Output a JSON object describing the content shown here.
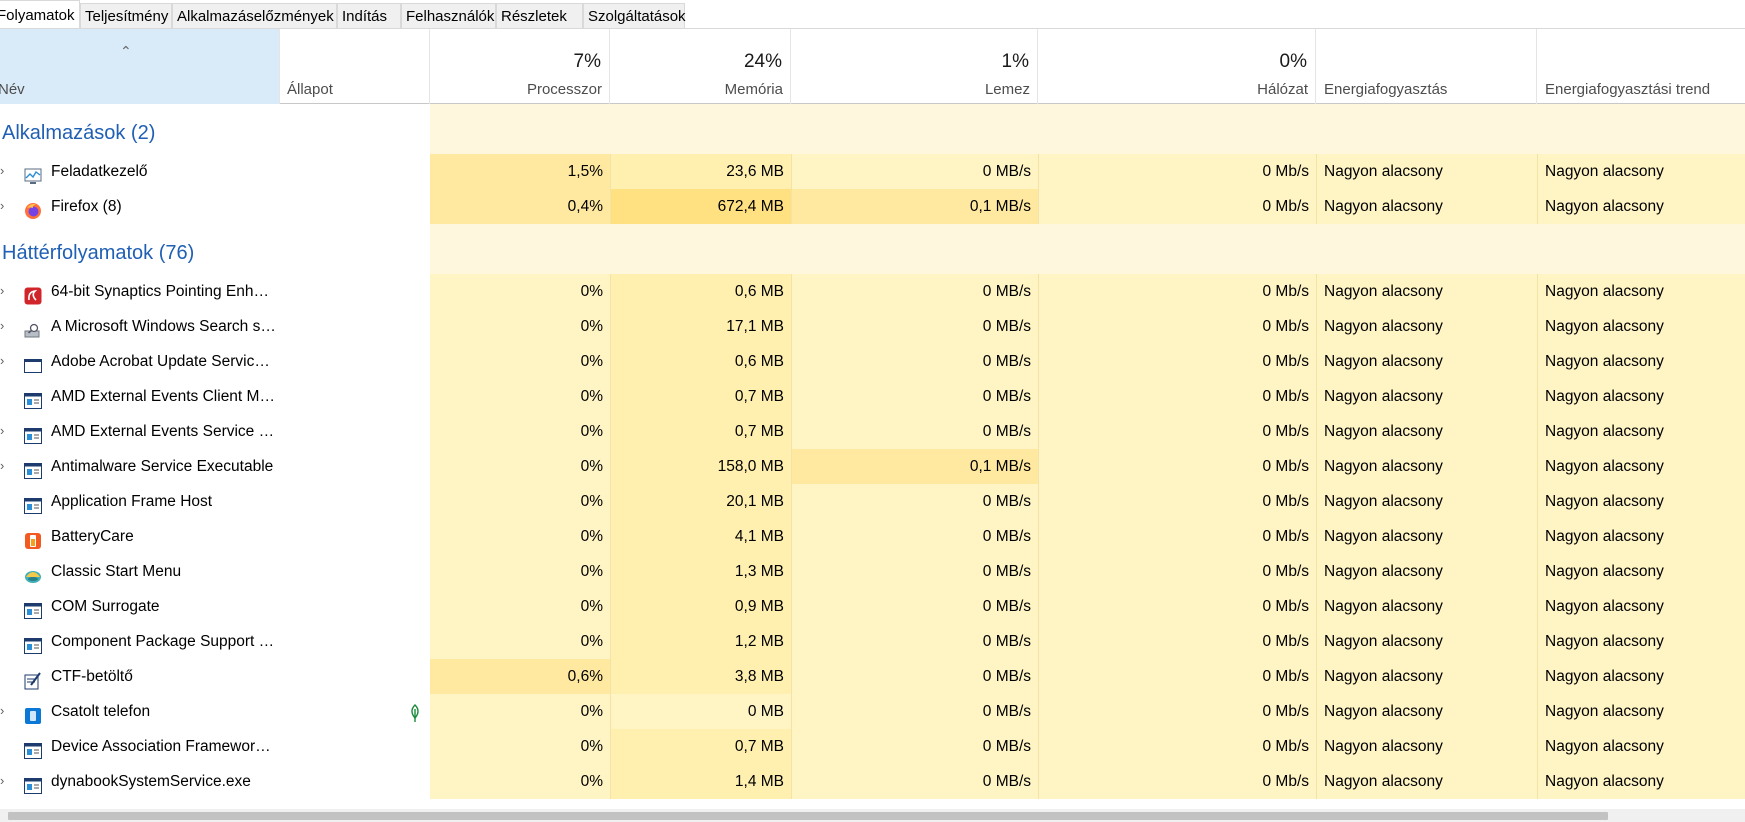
{
  "tabs": [
    {
      "label": "Folyamatok",
      "active": true
    },
    {
      "label": "Teljesítmény",
      "active": false
    },
    {
      "label": "Alkalmazáselőzmények",
      "active": false
    },
    {
      "label": "Indítás",
      "active": false
    },
    {
      "label": "Felhasználók",
      "active": false
    },
    {
      "label": "Részletek",
      "active": false
    },
    {
      "label": "Szolgáltatások",
      "active": false
    }
  ],
  "columns": {
    "name": {
      "label": "Név"
    },
    "status": {
      "label": "Állapot"
    },
    "cpu": {
      "label": "Processzor",
      "total": "7%"
    },
    "memory": {
      "label": "Memória",
      "total": "24%"
    },
    "disk": {
      "label": "Lemez",
      "total": "1%"
    },
    "network": {
      "label": "Hálózat",
      "total": "0%"
    },
    "power": {
      "label": "Energiafogyasztás"
    },
    "power_trend": {
      "label": "Energiafogyasztási trend"
    }
  },
  "groups": [
    {
      "title": "Alkalmazások (2)",
      "rows": [
        {
          "name": "Feladatkezelő",
          "icon": "task-manager-icon",
          "expandable": true,
          "cpu": "1,5%",
          "memory": "23,6 MB",
          "disk": "0 MB/s",
          "network": "0 Mb/s",
          "power": "Nagyon alacsony",
          "power_trend": "Nagyon alacsony",
          "mem_heat": "low",
          "disk_heat": "base",
          "cpu_heat": "mid"
        },
        {
          "name": "Firefox (8)",
          "icon": "firefox-icon",
          "expandable": true,
          "cpu": "0,4%",
          "memory": "672,4 MB",
          "disk": "0,1 MB/s",
          "network": "0 Mb/s",
          "power": "Nagyon alacsony",
          "power_trend": "Nagyon alacsony",
          "mem_heat": "high",
          "disk_heat": "mid",
          "cpu_heat": "mid"
        }
      ]
    },
    {
      "title": "Háttérfolyamatok (76)",
      "rows": [
        {
          "name": "64-bit Synaptics Pointing Enhan...",
          "icon": "synaptics-icon",
          "expandable": true,
          "cpu": "0%",
          "memory": "0,6 MB",
          "disk": "0 MB/s",
          "network": "0 Mb/s",
          "power": "Nagyon alacsony",
          "power_trend": "Nagyon alacsony",
          "mem_heat": "low",
          "disk_heat": "base",
          "cpu_heat": "base"
        },
        {
          "name": "A Microsoft Windows Search sz...",
          "icon": "search-service-icon",
          "expandable": true,
          "cpu": "0%",
          "memory": "17,1 MB",
          "disk": "0 MB/s",
          "network": "0 Mb/s",
          "power": "Nagyon alacsony",
          "power_trend": "Nagyon alacsony",
          "mem_heat": "low",
          "disk_heat": "base",
          "cpu_heat": "base"
        },
        {
          "name": "Adobe Acrobat Update Service ...",
          "icon": "window-icon",
          "expandable": true,
          "cpu": "0%",
          "memory": "0,6 MB",
          "disk": "0 MB/s",
          "network": "0 Mb/s",
          "power": "Nagyon alacsony",
          "power_trend": "Nagyon alacsony",
          "mem_heat": "low",
          "disk_heat": "base",
          "cpu_heat": "base"
        },
        {
          "name": "AMD External Events Client Mo...",
          "icon": "service-app-icon",
          "expandable": false,
          "cpu": "0%",
          "memory": "0,7 MB",
          "disk": "0 MB/s",
          "network": "0 Mb/s",
          "power": "Nagyon alacsony",
          "power_trend": "Nagyon alacsony",
          "mem_heat": "low",
          "disk_heat": "base",
          "cpu_heat": "base"
        },
        {
          "name": "AMD External Events Service M...",
          "icon": "service-app-icon",
          "expandable": true,
          "cpu": "0%",
          "memory": "0,7 MB",
          "disk": "0 MB/s",
          "network": "0 Mb/s",
          "power": "Nagyon alacsony",
          "power_trend": "Nagyon alacsony",
          "mem_heat": "low",
          "disk_heat": "base",
          "cpu_heat": "base"
        },
        {
          "name": "Antimalware Service Executable",
          "icon": "service-app-icon",
          "expandable": true,
          "cpu": "0%",
          "memory": "158,0 MB",
          "disk": "0,1 MB/s",
          "network": "0 Mb/s",
          "power": "Nagyon alacsony",
          "power_trend": "Nagyon alacsony",
          "mem_heat": "low",
          "disk_heat": "mid",
          "cpu_heat": "base"
        },
        {
          "name": "Application Frame Host",
          "icon": "service-app-icon",
          "expandable": false,
          "cpu": "0%",
          "memory": "20,1 MB",
          "disk": "0 MB/s",
          "network": "0 Mb/s",
          "power": "Nagyon alacsony",
          "power_trend": "Nagyon alacsony",
          "mem_heat": "low",
          "disk_heat": "base",
          "cpu_heat": "base"
        },
        {
          "name": "BatteryCare",
          "icon": "battery-icon",
          "expandable": false,
          "cpu": "0%",
          "memory": "4,1 MB",
          "disk": "0 MB/s",
          "network": "0 Mb/s",
          "power": "Nagyon alacsony",
          "power_trend": "Nagyon alacsony",
          "mem_heat": "low",
          "disk_heat": "base",
          "cpu_heat": "base"
        },
        {
          "name": "Classic Start Menu",
          "icon": "shell-icon",
          "expandable": false,
          "cpu": "0%",
          "memory": "1,3 MB",
          "disk": "0 MB/s",
          "network": "0 Mb/s",
          "power": "Nagyon alacsony",
          "power_trend": "Nagyon alacsony",
          "mem_heat": "low",
          "disk_heat": "base",
          "cpu_heat": "base"
        },
        {
          "name": "COM Surrogate",
          "icon": "service-app-icon",
          "expandable": false,
          "cpu": "0%",
          "memory": "0,9 MB",
          "disk": "0 MB/s",
          "network": "0 Mb/s",
          "power": "Nagyon alacsony",
          "power_trend": "Nagyon alacsony",
          "mem_heat": "low",
          "disk_heat": "base",
          "cpu_heat": "base"
        },
        {
          "name": "Component Package Support Se...",
          "icon": "service-app-icon",
          "expandable": false,
          "cpu": "0%",
          "memory": "1,2 MB",
          "disk": "0 MB/s",
          "network": "0 Mb/s",
          "power": "Nagyon alacsony",
          "power_trend": "Nagyon alacsony",
          "mem_heat": "low",
          "disk_heat": "base",
          "cpu_heat": "base"
        },
        {
          "name": "CTF-betöltő",
          "icon": "ctf-loader-icon",
          "expandable": false,
          "cpu": "0,6%",
          "memory": "3,8 MB",
          "disk": "0 MB/s",
          "network": "0 Mb/s",
          "power": "Nagyon alacsony",
          "power_trend": "Nagyon alacsony",
          "mem_heat": "low",
          "disk_heat": "base",
          "cpu_heat": "mid"
        },
        {
          "name": "Csatolt telefon",
          "icon": "phone-link-icon",
          "expandable": true,
          "suspended": true,
          "cpu": "0%",
          "memory": "0 MB",
          "disk": "0 MB/s",
          "network": "0 Mb/s",
          "power": "Nagyon alacsony",
          "power_trend": "Nagyon alacsony",
          "mem_heat": "base",
          "disk_heat": "base",
          "cpu_heat": "base"
        },
        {
          "name": "Device Association Framework ...",
          "icon": "service-app-icon",
          "expandable": false,
          "cpu": "0%",
          "memory": "0,7 MB",
          "disk": "0 MB/s",
          "network": "0 Mb/s",
          "power": "Nagyon alacsony",
          "power_trend": "Nagyon alacsony",
          "mem_heat": "low",
          "disk_heat": "base",
          "cpu_heat": "base"
        },
        {
          "name": "dynabookSystemService.exe",
          "icon": "service-app-icon",
          "expandable": true,
          "cpu": "0%",
          "memory": "1,4 MB",
          "disk": "0 MB/s",
          "network": "0 Mb/s",
          "power": "Nagyon alacsony",
          "power_trend": "Nagyon alacsony",
          "mem_heat": "low",
          "disk_heat": "base",
          "cpu_heat": "base"
        }
      ]
    }
  ],
  "colors": {
    "heat_base": "#fff4c4",
    "heat_low": "#fff0b0",
    "heat_mid": "#ffe9a0",
    "heat_high": "#ffe182",
    "group_band": "#fff7dd",
    "group_title": "#1f5fb4",
    "name_header_selected": "#d9ebf9"
  }
}
